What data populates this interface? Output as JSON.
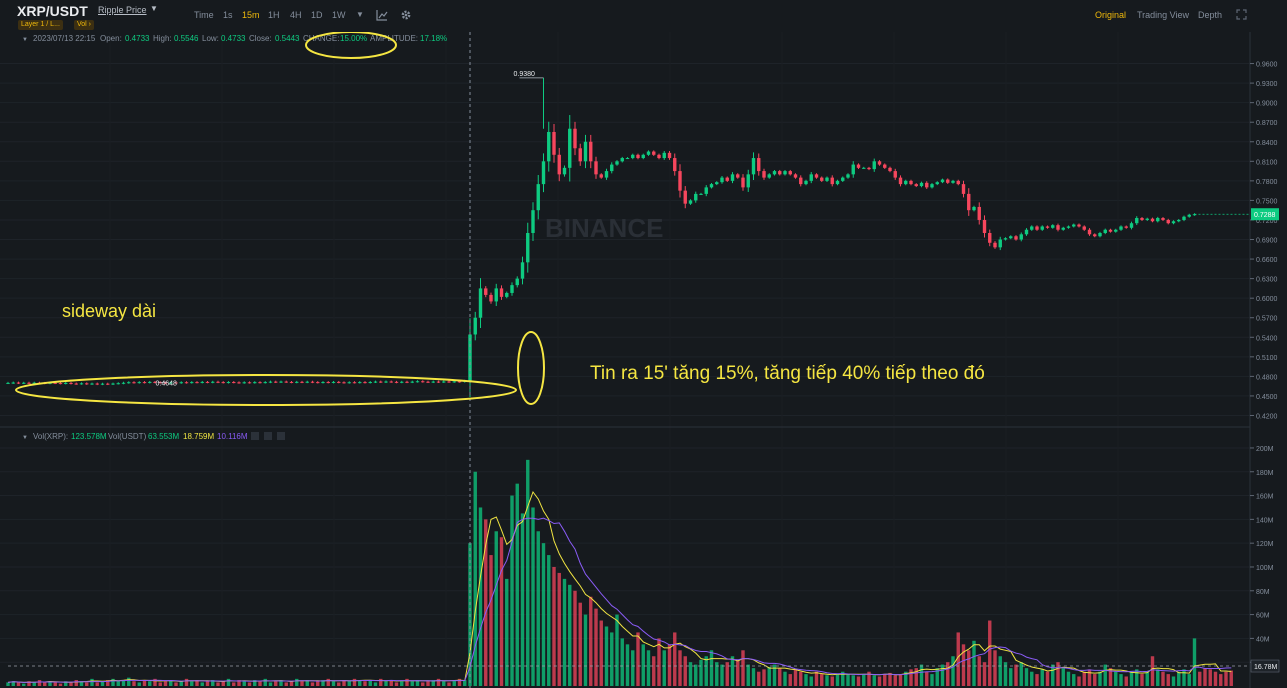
{
  "header": {
    "symbol": "XRP/USDT",
    "price_name": "Ripple Price",
    "tags": [
      "Layer 1 / L...",
      "Vol ›"
    ],
    "timeframes": [
      "Time",
      "1s",
      "15m",
      "1H",
      "4H",
      "1D",
      "1W"
    ],
    "active_timeframe": "15m",
    "views": [
      "Original",
      "Trading View",
      "Depth"
    ],
    "active_view": "Original"
  },
  "ohlc": {
    "date": "2023/07/13 22:15",
    "open_label": "Open:",
    "open": "0.4733",
    "high_label": "High:",
    "high": "0.5546",
    "low_label": "Low:",
    "low": "0.4733",
    "close_label": "Close:",
    "close": "0.5443",
    "change_label": "CHANGE:",
    "change": "15.00%",
    "amplitude_label": "AMPLITUDE:",
    "amplitude": "17.18%"
  },
  "volume_legend": {
    "vol_xrp_label": "Vol(XRP):",
    "vol_xrp": "123.578M",
    "vol_usdt_label": "Vol(USDT)",
    "vol_usdt": "63.553M",
    "ma1": "18.759M",
    "ma2": "10.116M"
  },
  "annotations": {
    "sideway": "sideway dài",
    "news": "Tin ra 15' tăng 15%, tăng tiếp 40% tiếp theo đó"
  },
  "watermark": "BINANCE",
  "chart_data": {
    "type": "candlestick",
    "price_ticks": [
      "0.9600",
      "0.9300",
      "0.9000",
      "0.8700",
      "0.8400",
      "0.8100",
      "0.7800",
      "0.7500",
      "0.7200",
      "0.6900",
      "0.6600",
      "0.6300",
      "0.6000",
      "0.5700",
      "0.5400",
      "0.5100",
      "0.4800",
      "0.4500",
      "0.4200"
    ],
    "price_range": [
      0.41,
      0.99
    ],
    "current_price": "0.7288",
    "high_marker": "0.9380",
    "low_marker": "0.4648",
    "volume_ticks": [
      "200M",
      "180M",
      "160M",
      "140M",
      "120M",
      "100M",
      "80M",
      "60M",
      "40M",
      "20M"
    ],
    "volume_range": [
      0,
      205
    ],
    "current_volume": "16.78M",
    "news_bar_index": 88,
    "closes": [
      0.47,
      0.4705,
      0.4698,
      0.4702,
      0.4696,
      0.4703,
      0.47,
      0.4694,
      0.4701,
      0.4697,
      0.4692,
      0.4699,
      0.469,
      0.4686,
      0.4693,
      0.4684,
      0.469,
      0.4681,
      0.4688,
      0.4682,
      0.469,
      0.4695,
      0.4702,
      0.471,
      0.4703,
      0.4712,
      0.4706,
      0.4715,
      0.471,
      0.4705,
      0.4699,
      0.4707,
      0.4701,
      0.471,
      0.4704,
      0.4712,
      0.4707,
      0.4715,
      0.4709,
      0.4717,
      0.4712,
      0.4706,
      0.4713,
      0.4708,
      0.4702,
      0.4709,
      0.4703,
      0.4711,
      0.4705,
      0.4712,
      0.4719,
      0.4713,
      0.472,
      0.4715,
      0.4709,
      0.4716,
      0.4711,
      0.4718,
      0.4712,
      0.4706,
      0.4713,
      0.4708,
      0.4715,
      0.4709,
      0.4703,
      0.471,
      0.4705,
      0.4712,
      0.4706,
      0.4713,
      0.472,
      0.4714,
      0.4721,
      0.4716,
      0.471,
      0.4717,
      0.4712,
      0.4719,
      0.4725,
      0.4718,
      0.4713,
      0.472,
      0.4714,
      0.4721,
      0.4716,
      0.4723,
      0.4718,
      0.4733,
      0.5443,
      0.57,
      0.615,
      0.605,
      0.595,
      0.615,
      0.602,
      0.608,
      0.62,
      0.63,
      0.655,
      0.7,
      0.735,
      0.775,
      0.81,
      0.855,
      0.82,
      0.79,
      0.8,
      0.86,
      0.83,
      0.81,
      0.84,
      0.81,
      0.79,
      0.785,
      0.795,
      0.805,
      0.81,
      0.815,
      0.815,
      0.82,
      0.815,
      0.82,
      0.825,
      0.82,
      0.815,
      0.823,
      0.815,
      0.795,
      0.765,
      0.745,
      0.75,
      0.76,
      0.76,
      0.77,
      0.775,
      0.778,
      0.785,
      0.78,
      0.79,
      0.785,
      0.77,
      0.79,
      0.815,
      0.795,
      0.785,
      0.79,
      0.795,
      0.79,
      0.795,
      0.79,
      0.785,
      0.775,
      0.78,
      0.79,
      0.785,
      0.78,
      0.785,
      0.775,
      0.78,
      0.785,
      0.79,
      0.805,
      0.8,
      0.8,
      0.798,
      0.81,
      0.805,
      0.8,
      0.795,
      0.785,
      0.775,
      0.78,
      0.775,
      0.772,
      0.777,
      0.77,
      0.775,
      0.778,
      0.782,
      0.777,
      0.78,
      0.775,
      0.76,
      0.735,
      0.74,
      0.72,
      0.7,
      0.685,
      0.678,
      0.69,
      0.692,
      0.695,
      0.69,
      0.698,
      0.705,
      0.71,
      0.705,
      0.71,
      0.708,
      0.712,
      0.705,
      0.708,
      0.71,
      0.713,
      0.71,
      0.705,
      0.698,
      0.695,
      0.7,
      0.705,
      0.702,
      0.705,
      0.71,
      0.708,
      0.715,
      0.723,
      0.72,
      0.722,
      0.718,
      0.723,
      0.72,
      0.715,
      0.718,
      0.72,
      0.725,
      0.728,
      0.7288
    ],
    "volumes": [
      3,
      4,
      3,
      2,
      4,
      3,
      5,
      3,
      4,
      3,
      2,
      4,
      3,
      5,
      4,
      3,
      6,
      3,
      4,
      5,
      6,
      4,
      5,
      7,
      4,
      3,
      5,
      4,
      6,
      3,
      4,
      5,
      3,
      4,
      6,
      4,
      5,
      3,
      4,
      5,
      3,
      4,
      6,
      3,
      5,
      4,
      3,
      5,
      4,
      6,
      3,
      4,
      5,
      3,
      4,
      6,
      4,
      5,
      3,
      4,
      5,
      6,
      4,
      3,
      5,
      4,
      6,
      5,
      4,
      5,
      3,
      6,
      4,
      5,
      3,
      4,
      6,
      4,
      5,
      3,
      4,
      5,
      6,
      4,
      3,
      5,
      6,
      5,
      120,
      180,
      150,
      140,
      110,
      130,
      125,
      90,
      160,
      170,
      145,
      190,
      150,
      130,
      120,
      110,
      100,
      95,
      90,
      85,
      80,
      70,
      60,
      75,
      65,
      55,
      50,
      45,
      60,
      40,
      35,
      30,
      45,
      35,
      30,
      25,
      40,
      30,
      35,
      45,
      30,
      25,
      20,
      18,
      22,
      25,
      30,
      20,
      18,
      20,
      25,
      22,
      30,
      18,
      15,
      12,
      14,
      16,
      18,
      15,
      12,
      10,
      14,
      12,
      10,
      8,
      12,
      10,
      9,
      8,
      10,
      12,
      10,
      9,
      8,
      10,
      12,
      9,
      8,
      10,
      11,
      9,
      10,
      12,
      14,
      15,
      18,
      12,
      10,
      15,
      18,
      20,
      25,
      45,
      35,
      30,
      38,
      25,
      20,
      55,
      30,
      25,
      20,
      15,
      18,
      20,
      15,
      12,
      10,
      14,
      12,
      18,
      20,
      15,
      12,
      10,
      8,
      12,
      14,
      10,
      12,
      18,
      15,
      12,
      10,
      8,
      12,
      14,
      10,
      12,
      25,
      14,
      12,
      10,
      8,
      12,
      14,
      10,
      40,
      12,
      15,
      14,
      12,
      10,
      12,
      13
    ]
  }
}
